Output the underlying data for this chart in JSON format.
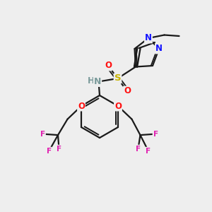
{
  "bg_color": "#eeeeee",
  "bond_color": "#1a1a1a",
  "bond_width": 1.6,
  "atom_colors": {
    "N": "#1414ff",
    "O": "#ff1010",
    "S": "#c8b400",
    "F": "#e020b0",
    "H": "#7a9a9a",
    "C": "#1a1a1a"
  },
  "font_size": 8.5,
  "fig_size": [
    3.0,
    3.0
  ],
  "dpi": 100
}
